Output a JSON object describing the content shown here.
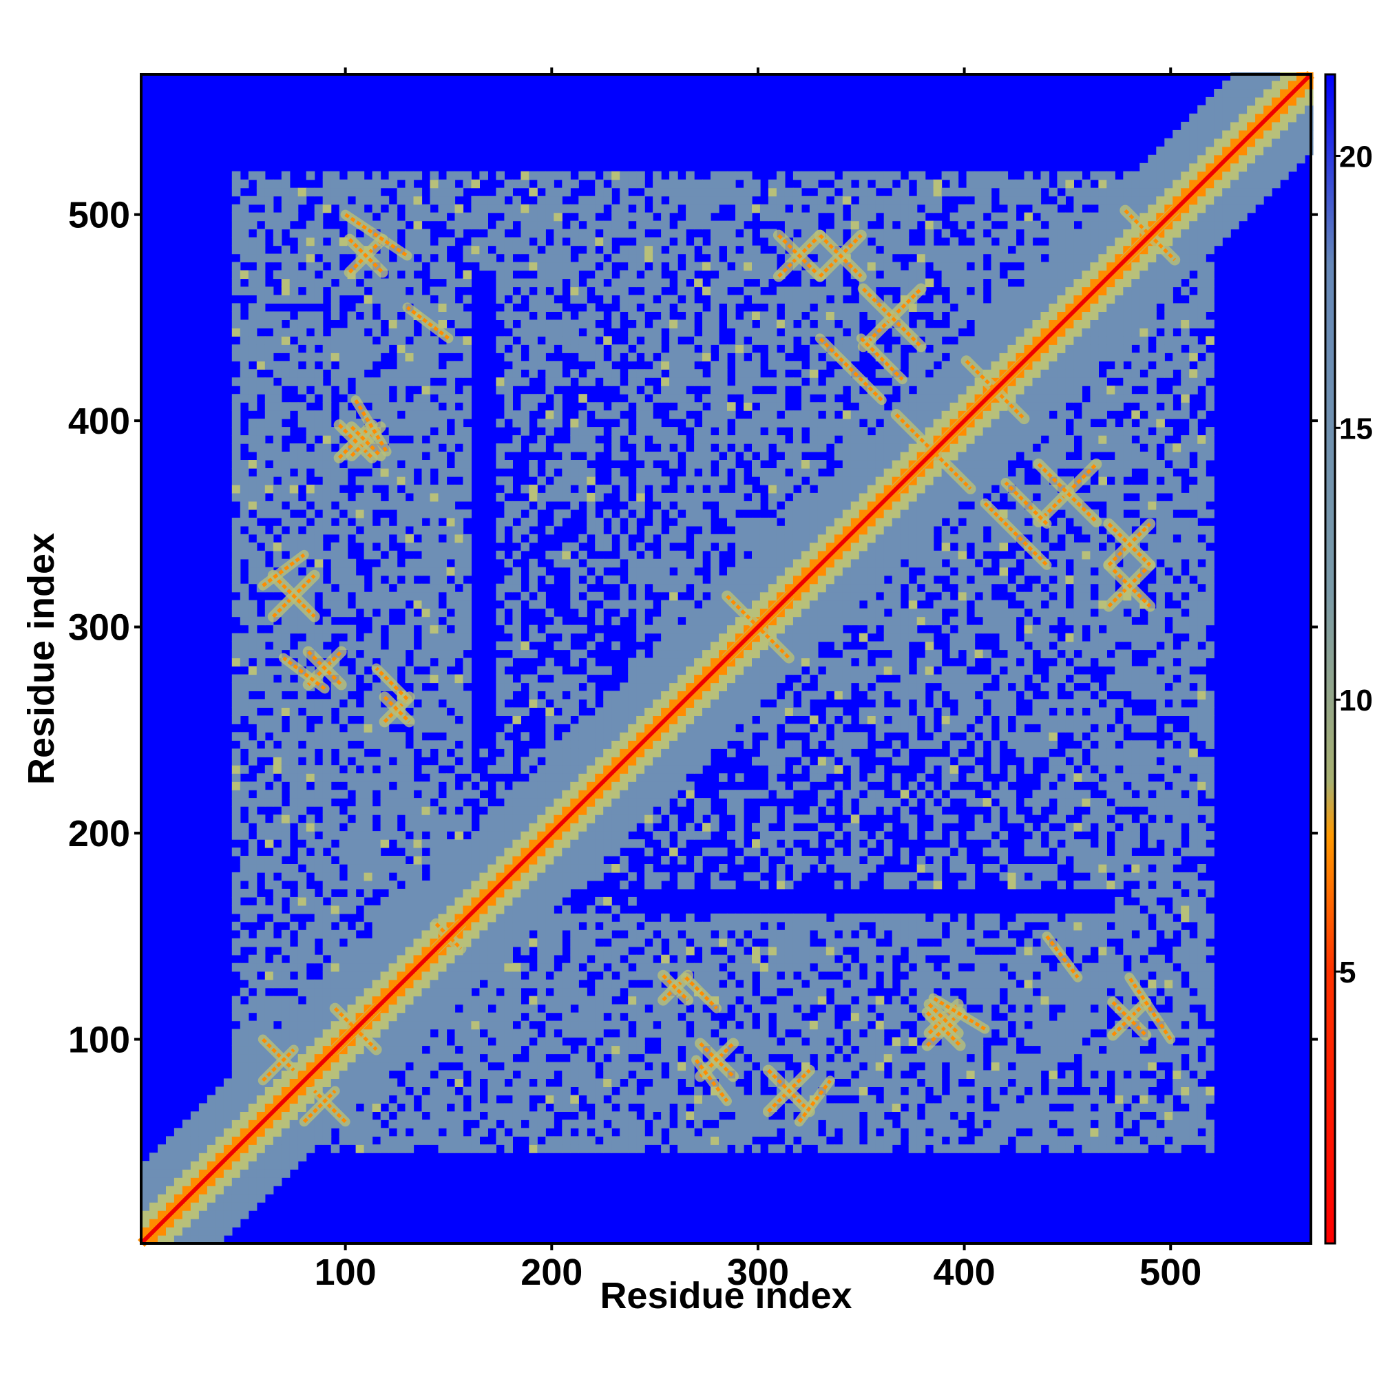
{
  "chart_data": {
    "type": "heatmap",
    "title": "",
    "xlabel": "Residue index",
    "ylabel": "Residue index",
    "xlim": [
      1,
      568
    ],
    "ylim": [
      1,
      568
    ],
    "x_ticks": [
      100,
      200,
      300,
      400,
      500
    ],
    "y_ticks": [
      100,
      200,
      300,
      400,
      500
    ],
    "colorbar": {
      "ticks": [
        5,
        10,
        15,
        20
      ],
      "range": [
        0,
        21.5
      ],
      "colors": [
        {
          "value": 0,
          "color": "#ff0000"
        },
        {
          "value": 5,
          "color": "#ff3300"
        },
        {
          "value": 7.5,
          "color": "#ff9900"
        },
        {
          "value": 8.5,
          "color": "#a8b070"
        },
        {
          "value": 12,
          "color": "#7a9aa8"
        },
        {
          "value": 18,
          "color": "#6688b8"
        },
        {
          "value": 21.5,
          "color": "#0000ff"
        }
      ]
    },
    "grid": false,
    "symmetric": true,
    "background_color": "#0000ff",
    "contact_color": "#6e8fb5",
    "near_color": "#b8c07a",
    "close_color": "#ff8c00",
    "diagonal_color": "#ee0000",
    "contact_regions": [
      {
        "x": [
          45,
          515
        ],
        "y": [
          45,
          115
        ],
        "density": 0.72
      },
      {
        "x": [
          45,
          515
        ],
        "y": [
          470,
          520
        ],
        "density": 0.7
      },
      {
        "x": [
          55,
          160
        ],
        "y": [
          45,
          520
        ],
        "density": 0.74
      },
      {
        "x": [
          170,
          240
        ],
        "y": [
          120,
          430
        ],
        "density": 0.45
      },
      {
        "x": [
          240,
          510
        ],
        "y": [
          170,
          520
        ],
        "density": 0.66
      },
      {
        "x": [
          360,
          510
        ],
        "y": [
          300,
          480
        ],
        "density": 0.82
      },
      {
        "x": [
          150,
          240
        ],
        "y": [
          150,
          240
        ],
        "density": 0.9
      },
      {
        "x": [
          250,
          340
        ],
        "y": [
          250,
          340
        ],
        "density": 0.88
      },
      {
        "x": [
          470,
          515
        ],
        "y": [
          45,
          130
        ],
        "density": 0.8
      },
      {
        "x": [
          250,
          330
        ],
        "y": [
          45,
          140
        ],
        "density": 0.75
      },
      {
        "x": [
          330,
          440
        ],
        "y": [
          45,
          140
        ],
        "density": 0.65
      }
    ],
    "cross_patterns": [
      {
        "x": 105,
        "y": 105,
        "r": 10
      },
      {
        "x": 150,
        "y": 150,
        "r": 6
      },
      {
        "x": 300,
        "y": 300,
        "r": 15
      },
      {
        "x": 385,
        "y": 385,
        "r": 18
      },
      {
        "x": 415,
        "y": 415,
        "r": 14
      },
      {
        "x": 490,
        "y": 490,
        "r": 12
      },
      {
        "x": 365,
        "y": 450,
        "r": 14
      },
      {
        "x": 480,
        "y": 320,
        "r": 10
      },
      {
        "x": 390,
        "y": 105,
        "r": 8
      },
      {
        "x": 75,
        "y": 315,
        "r": 10
      },
      {
        "x": 90,
        "y": 280,
        "r": 8
      },
      {
        "x": 340,
        "y": 480,
        "r": 10
      },
      {
        "x": 110,
        "y": 390,
        "r": 7
      },
      {
        "x": 125,
        "y": 260,
        "r": 6
      },
      {
        "x": 480,
        "y": 110,
        "r": 8
      }
    ],
    "strand_pairs": [
      {
        "x1": 60,
        "x2": 75,
        "y1": 100,
        "y2": 85
      },
      {
        "x1": 80,
        "x2": 95,
        "y1": 60,
        "y2": 75
      },
      {
        "x1": 350,
        "x2": 370,
        "y1": 440,
        "y2": 420
      },
      {
        "x1": 410,
        "x2": 440,
        "y1": 360,
        "y2": 330
      },
      {
        "x1": 270,
        "x2": 285,
        "y1": 90,
        "y2": 70
      },
      {
        "x1": 265,
        "x2": 280,
        "y1": 130,
        "y2": 115
      },
      {
        "x1": 320,
        "x2": 335,
        "y1": 60,
        "y2": 80
      },
      {
        "x1": 440,
        "x2": 455,
        "y1": 150,
        "y2": 130
      },
      {
        "x1": 100,
        "x2": 130,
        "y1": 500,
        "y2": 480
      },
      {
        "x1": 105,
        "x2": 120,
        "y1": 410,
        "y2": 385
      }
    ]
  }
}
